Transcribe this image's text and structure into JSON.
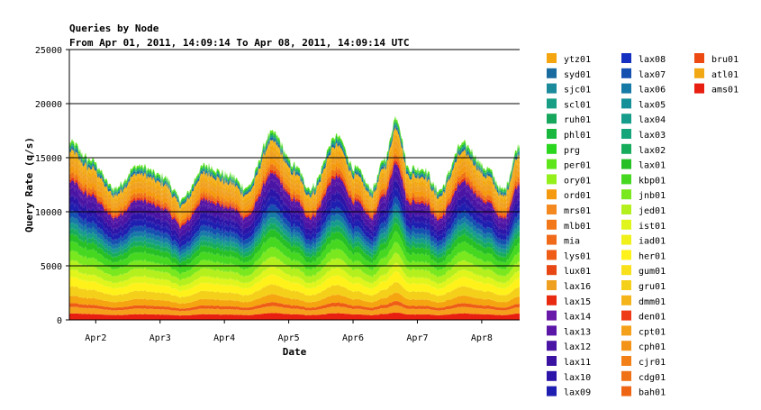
{
  "chart_data": {
    "type": "area",
    "stacked": true,
    "title": "Queries by Node",
    "subtitle": "From Apr 01, 2011, 14:09:14 To Apr 08, 2011, 14:09:14 UTC",
    "xlabel": "Date",
    "ylabel": "Query Rate (q/s)",
    "ylim": [
      0,
      25000
    ],
    "yticks": [
      "0",
      "5000",
      "10000",
      "15000",
      "20000",
      "25000"
    ],
    "xticks": [
      "Apr2",
      "Apr3",
      "Apr4",
      "Apr5",
      "Apr6",
      "Apr7",
      "Apr8"
    ],
    "grid": "horizontal",
    "legend_position": "right",
    "total_query_rate": {
      "x": [
        "Apr 01 14:09",
        "Apr 01 22:00",
        "Apr 02 07:00",
        "Apr 02 16:00",
        "Apr 03 01:00",
        "Apr 03 08:00",
        "Apr 03 17:00",
        "Apr 04 02:00",
        "Apr 04 08:00",
        "Apr 04 18:00",
        "Apr 05 02:00",
        "Apr 05 08:00",
        "Apr 05 18:00",
        "Apr 06 01:00",
        "Apr 06 07:00",
        "Apr 06 12:00",
        "Apr 06 16:00",
        "Apr 06 21:00",
        "Apr 07 02:00",
        "Apr 07 08:00",
        "Apr 07 17:00",
        "Apr 08 02:00",
        "Apr 08 08:00",
        "Apr 08 14:09"
      ],
      "y": [
        16500,
        14800,
        12200,
        14300,
        13300,
        11200,
        14300,
        13400,
        12200,
        17300,
        14300,
        12200,
        17000,
        14000,
        12200,
        15000,
        18800,
        14000,
        14000,
        12000,
        16300,
        14000,
        12000,
        16200
      ]
    },
    "series": [
      {
        "name": "ytz01",
        "color": "#f5a50f"
      },
      {
        "name": "syd01",
        "color": "#1a6ba0"
      },
      {
        "name": "sjc01",
        "color": "#1b8a9b"
      },
      {
        "name": "scl01",
        "color": "#199e86"
      },
      {
        "name": "ruh01",
        "color": "#16a65c"
      },
      {
        "name": "phl01",
        "color": "#17b83d"
      },
      {
        "name": "prg",
        "color": "#2ad61e"
      },
      {
        "name": "per01",
        "color": "#5ee61a"
      },
      {
        "name": "ory01",
        "color": "#94f01a"
      },
      {
        "name": "ord01",
        "color": "#f59a0e"
      },
      {
        "name": "mrs01",
        "color": "#f48a1f"
      },
      {
        "name": "mlb01",
        "color": "#f2781a"
      },
      {
        "name": "mia",
        "color": "#f06a1a"
      },
      {
        "name": "lys01",
        "color": "#ee5c16"
      },
      {
        "name": "lux01",
        "color": "#e84612"
      },
      {
        "name": "lax16",
        "color": "#f0a020"
      },
      {
        "name": "lax15",
        "color": "#e82a10"
      },
      {
        "name": "lax14",
        "color": "#6a1aa8"
      },
      {
        "name": "lax13",
        "color": "#5a16a6"
      },
      {
        "name": "lax12",
        "color": "#4a14a4"
      },
      {
        "name": "lax11",
        "color": "#3a12a2"
      },
      {
        "name": "lax10",
        "color": "#2c14a8"
      },
      {
        "name": "lax09",
        "color": "#1e1eb0"
      },
      {
        "name": "lax08",
        "color": "#1430c0"
      },
      {
        "name": "lax07",
        "color": "#1450b0"
      },
      {
        "name": "lax06",
        "color": "#167aa6"
      },
      {
        "name": "lax05",
        "color": "#169098"
      },
      {
        "name": "lax04",
        "color": "#169c8a"
      },
      {
        "name": "lax03",
        "color": "#16a47a"
      },
      {
        "name": "lax02",
        "color": "#16ac5c"
      },
      {
        "name": "lax01",
        "color": "#26c026"
      },
      {
        "name": "kbp01",
        "color": "#46d820"
      },
      {
        "name": "jnb01",
        "color": "#7ae81e"
      },
      {
        "name": "jed01",
        "color": "#b4f01e"
      },
      {
        "name": "ist01",
        "color": "#e0f51c"
      },
      {
        "name": "iad01",
        "color": "#f0f01a"
      },
      {
        "name": "her01",
        "color": "#fff21a"
      },
      {
        "name": "gum01",
        "color": "#f8e01a"
      },
      {
        "name": "gru01",
        "color": "#f5d01a"
      },
      {
        "name": "dmm01",
        "color": "#f5b41a"
      },
      {
        "name": "den01",
        "color": "#ee3a16"
      },
      {
        "name": "cpt01",
        "color": "#f5a01a"
      },
      {
        "name": "cph01",
        "color": "#f39418"
      },
      {
        "name": "cjr01",
        "color": "#f28016"
      },
      {
        "name": "cdg01",
        "color": "#f07216"
      },
      {
        "name": "bah01",
        "color": "#ee6614"
      },
      {
        "name": "bru01",
        "color": "#ec4a12"
      },
      {
        "name": "atl01",
        "color": "#f2a812"
      },
      {
        "name": "ams01",
        "color": "#e81e10"
      }
    ]
  }
}
